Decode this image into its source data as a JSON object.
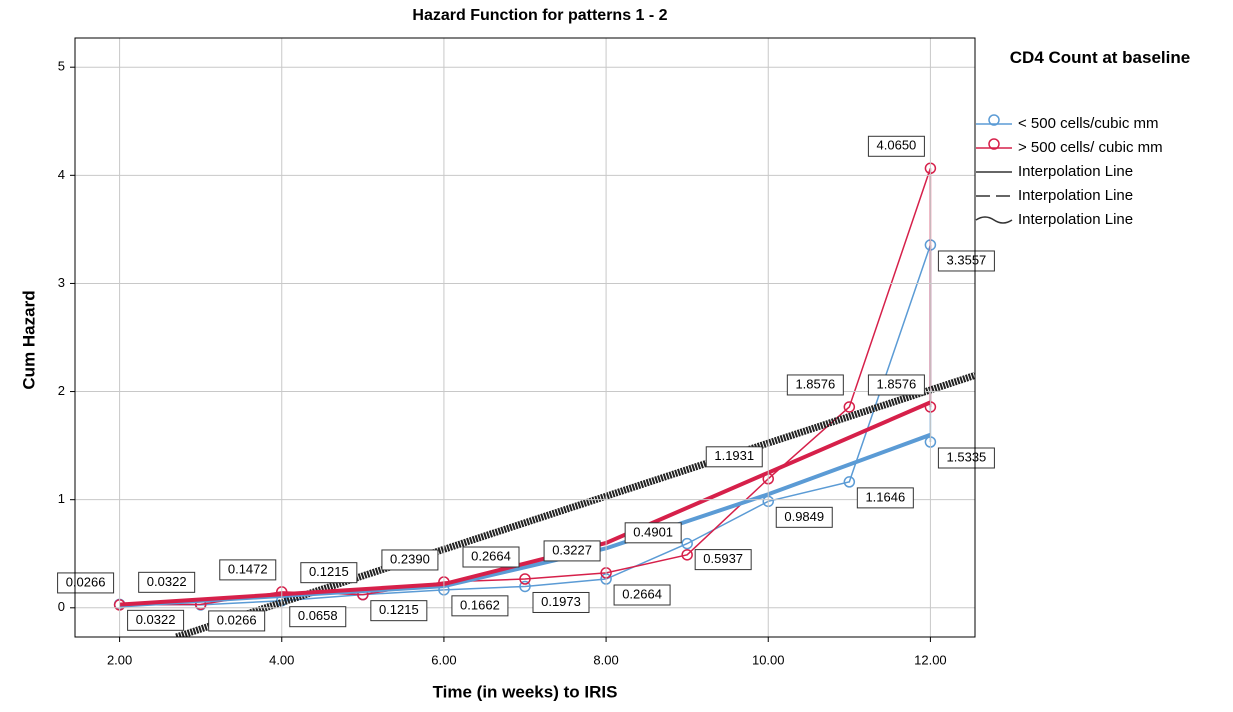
{
  "chart_data": {
    "type": "line",
    "title": "Hazard Function for patterns 1 - 2",
    "x_label": "Time (in weeks) to IRIS",
    "y_label": "Cum Hazard",
    "legend_title": "CD4 Count at baseline",
    "xlim": [
      1.45,
      12.55
    ],
    "ylim": [
      -0.27,
      5.27
    ],
    "xticks": [
      {
        "value": 2,
        "label": "2.00"
      },
      {
        "value": 4,
        "label": "4.00"
      },
      {
        "value": 6,
        "label": "6.00"
      },
      {
        "value": 8,
        "label": "8.00"
      },
      {
        "value": 10,
        "label": "10.00"
      },
      {
        "value": 12,
        "label": "12.00"
      }
    ],
    "yticks": [
      0,
      1,
      2,
      3,
      4,
      5
    ],
    "grid": true,
    "series": [
      {
        "name": "< 500 cells/cubic mm",
        "color": "#5b9bd5",
        "markers": true,
        "x": [
          2,
          3,
          4,
          5,
          6,
          7,
          8,
          9,
          10,
          11,
          12,
          12
        ],
        "values": [
          0.0322,
          0.0266,
          0.0658,
          0.1215,
          0.1662,
          0.1973,
          0.2664,
          0.5937,
          0.9849,
          1.1646,
          3.3557,
          1.5335
        ],
        "value_labels": [
          "0.0322",
          "0.0266",
          "0.0658",
          "0.1215",
          "0.1662",
          "0.1973",
          "0.2664",
          "0.5937",
          "0.9849",
          "1.1646",
          "3.3557",
          "1.5335"
        ]
      },
      {
        "name": " > 500 cells/ cubic mm",
        "color": "#d6204a",
        "markers": true,
        "x": [
          2,
          3,
          4,
          5,
          6,
          7,
          8,
          9,
          10,
          11,
          12,
          12
        ],
        "values": [
          0.0266,
          0.0322,
          0.1472,
          0.1215,
          0.239,
          0.2664,
          0.3227,
          0.4901,
          1.1931,
          1.8576,
          4.065,
          1.8576
        ],
        "value_labels": [
          "0.0266",
          "0.0322",
          "0.1472",
          "0.1215",
          "0.2390",
          "0.2664",
          "0.3227",
          "0.4901",
          "1.1931",
          "1.8576",
          "4.0650",
          "1.8576"
        ]
      },
      {
        "name": "Interpolation Line",
        "color": "#222222",
        "markers": false,
        "x": [
          2.7,
          12.55
        ],
        "values": [
          -0.27,
          2.15
        ]
      },
      {
        "name": "Interpolation Line",
        "color": "#5b9bd5",
        "markers": false,
        "x": [
          2,
          6,
          8,
          10,
          12
        ],
        "values": [
          0.02,
          0.2,
          0.55,
          1.05,
          1.6
        ]
      },
      {
        "name": "Interpolation Line",
        "color": "#d6204a",
        "markers": false,
        "x": [
          2,
          6,
          8,
          10,
          12
        ],
        "values": [
          0.03,
          0.22,
          0.6,
          1.25,
          1.9
        ]
      }
    ]
  }
}
